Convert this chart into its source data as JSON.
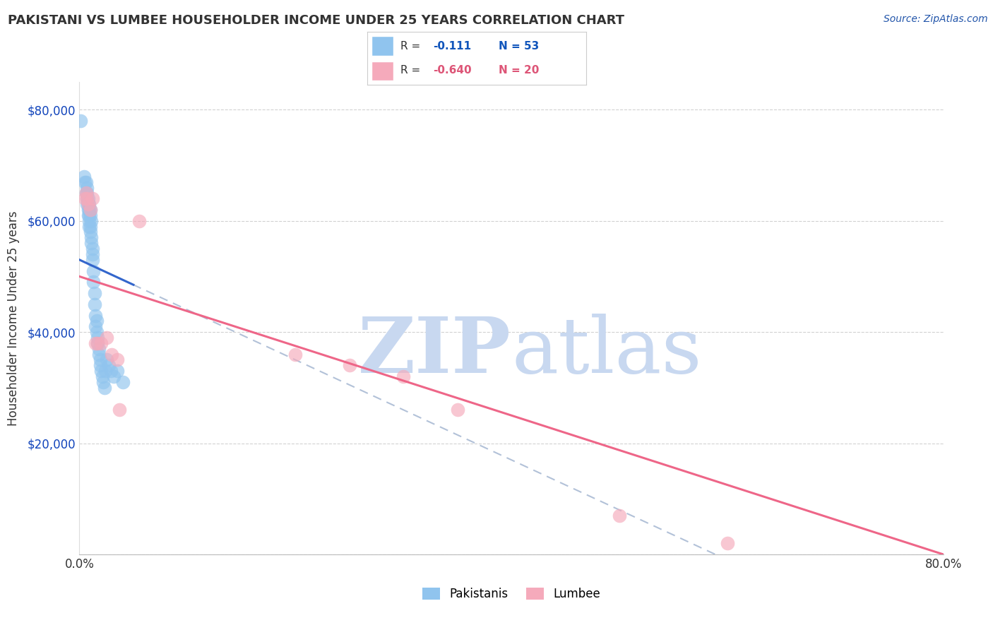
{
  "title": "PAKISTANI VS LUMBEE HOUSEHOLDER INCOME UNDER 25 YEARS CORRELATION CHART",
  "source": "Source: ZipAtlas.com",
  "ylabel": "Householder Income Under 25 years",
  "xlim": [
    0,
    0.8
  ],
  "ylim": [
    0,
    85000
  ],
  "ytick_vals": [
    0,
    20000,
    40000,
    60000,
    80000
  ],
  "ytick_labels": [
    "",
    "$20,000",
    "$40,000",
    "$60,000",
    "$80,000"
  ],
  "r_pakistani": -0.111,
  "n_pakistani": 53,
  "r_lumbee": -0.64,
  "n_lumbee": 20,
  "pakistani_color": "#90C4EE",
  "lumbee_color": "#F5AABB",
  "trend_pakistani_color": "#3366CC",
  "trend_lumbee_color": "#EE6688",
  "trend_dashed_color": "#AABBD4",
  "pakistani_x": [
    0.001,
    0.004,
    0.005,
    0.006,
    0.006,
    0.007,
    0.007,
    0.007,
    0.007,
    0.008,
    0.008,
    0.008,
    0.008,
    0.009,
    0.009,
    0.009,
    0.009,
    0.009,
    0.01,
    0.01,
    0.01,
    0.01,
    0.011,
    0.011,
    0.011,
    0.012,
    0.012,
    0.012,
    0.013,
    0.013,
    0.014,
    0.014,
    0.015,
    0.015,
    0.016,
    0.016,
    0.017,
    0.017,
    0.018,
    0.018,
    0.019,
    0.019,
    0.02,
    0.021,
    0.022,
    0.023,
    0.024,
    0.025,
    0.027,
    0.029,
    0.032,
    0.035,
    0.04
  ],
  "pakistani_y": [
    78000,
    68000,
    67000,
    67000,
    65000,
    66000,
    65000,
    64000,
    63000,
    64000,
    63000,
    62000,
    61000,
    63000,
    62000,
    61000,
    60000,
    59000,
    62000,
    61000,
    59000,
    58000,
    60000,
    57000,
    56000,
    55000,
    54000,
    53000,
    51000,
    49000,
    47000,
    45000,
    43000,
    41000,
    42000,
    40000,
    39000,
    38000,
    37000,
    36000,
    35000,
    34000,
    33000,
    32000,
    31000,
    30000,
    33000,
    35000,
    34000,
    33000,
    32000,
    33000,
    31000
  ],
  "lumbee_x": [
    0.005,
    0.006,
    0.007,
    0.008,
    0.01,
    0.012,
    0.015,
    0.017,
    0.02,
    0.025,
    0.03,
    0.035,
    0.037,
    0.055,
    0.2,
    0.25,
    0.3,
    0.35,
    0.5,
    0.6
  ],
  "lumbee_y": [
    64000,
    65000,
    64000,
    63000,
    62000,
    64000,
    38000,
    38000,
    38000,
    39000,
    36000,
    35000,
    26000,
    60000,
    36000,
    34000,
    32000,
    26000,
    7000,
    2000
  ],
  "legend_r1_text": "R = ",
  "legend_r1_val": "-0.111",
  "legend_n1": "N = 53",
  "legend_r2_text": "R = ",
  "legend_r2_val": "-0.640",
  "legend_n2": "N = 20",
  "legend_color1": "#1155BB",
  "legend_color2": "#DD5577",
  "watermark_zip_color": "#C8D8F0",
  "watermark_atlas_color": "#C8D8F0"
}
